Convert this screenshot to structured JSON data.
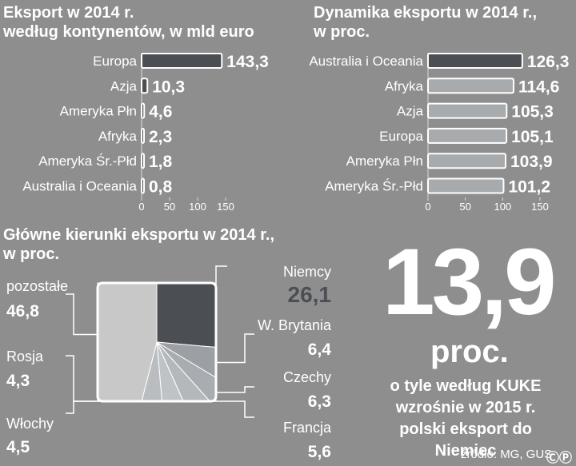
{
  "colors": {
    "background": "#8e8e8e",
    "dark": "#4b4f54",
    "light_bar": "#a7abae",
    "pie_other": "#c8c8c8"
  },
  "panel1": {
    "title_lines": [
      "Eksport w 2014 r.",
      "według kontynentów, w mld euro"
    ]
  },
  "panel2": {
    "title_lines": [
      "Dynamika eksportu w 2014 r.,",
      "w proc."
    ]
  },
  "panel3": {
    "title_lines": [
      "Główne kierunki eksportu w 2014 r.,",
      "w proc."
    ]
  },
  "headline": {
    "number": "13,9",
    "unit": "proc.",
    "caption_lines": [
      "o tyle według KUKE",
      "wzrośnie w 2015 r.",
      "polski eksport do Niemiec"
    ]
  },
  "source": "źródło: MG, GUS",
  "cc_icon": "cc-icon",
  "chart_data": [
    {
      "type": "bar",
      "orientation": "horizontal",
      "title": "Eksport w 2014 r. według kontynentów, w mld euro",
      "categories": [
        "Europa",
        "Azja",
        "Ameryka Płn",
        "Afryka",
        "Ameryka Śr.-Płd",
        "Australia i Oceania"
      ],
      "values": [
        143.3,
        10.3,
        4.6,
        2.3,
        1.8,
        0.8
      ],
      "value_labels": [
        "143,3",
        "10,3",
        "4,6",
        "2,3",
        "1,8",
        "0,8"
      ],
      "xlim": [
        0,
        150
      ],
      "ticks": [
        0,
        50,
        100,
        150
      ]
    },
    {
      "type": "bar",
      "orientation": "horizontal",
      "title": "Dynamika eksportu w 2014 r., w proc.",
      "categories": [
        "Australia i Oceania",
        "Afryka",
        "Azja",
        "Europa",
        "Ameryka Płn",
        "Ameryka Śr.-Płd"
      ],
      "values": [
        126.3,
        114.6,
        105.3,
        105.1,
        103.9,
        101.2
      ],
      "value_labels": [
        "126,3",
        "114,6",
        "105,3",
        "105,1",
        "103,9",
        "101,2"
      ],
      "xlim": [
        0,
        150
      ],
      "ticks": [
        0,
        50,
        100,
        150
      ]
    },
    {
      "type": "pie",
      "title": "Główne kierunki eksportu w 2014 r., w proc.",
      "slices": [
        {
          "label": "Niemcy",
          "value": 26.1,
          "display": "26,1"
        },
        {
          "label": "W. Brytania",
          "value": 6.4,
          "display": "6,4"
        },
        {
          "label": "Czechy",
          "value": 6.3,
          "display": "6,3"
        },
        {
          "label": "Francja",
          "value": 5.6,
          "display": "5,6"
        },
        {
          "label": "Włochy",
          "value": 4.5,
          "display": "4,5"
        },
        {
          "label": "Rosja",
          "value": 4.3,
          "display": "4,3"
        },
        {
          "label": "pozostałe",
          "value": 46.8,
          "display": "46,8"
        }
      ]
    }
  ]
}
